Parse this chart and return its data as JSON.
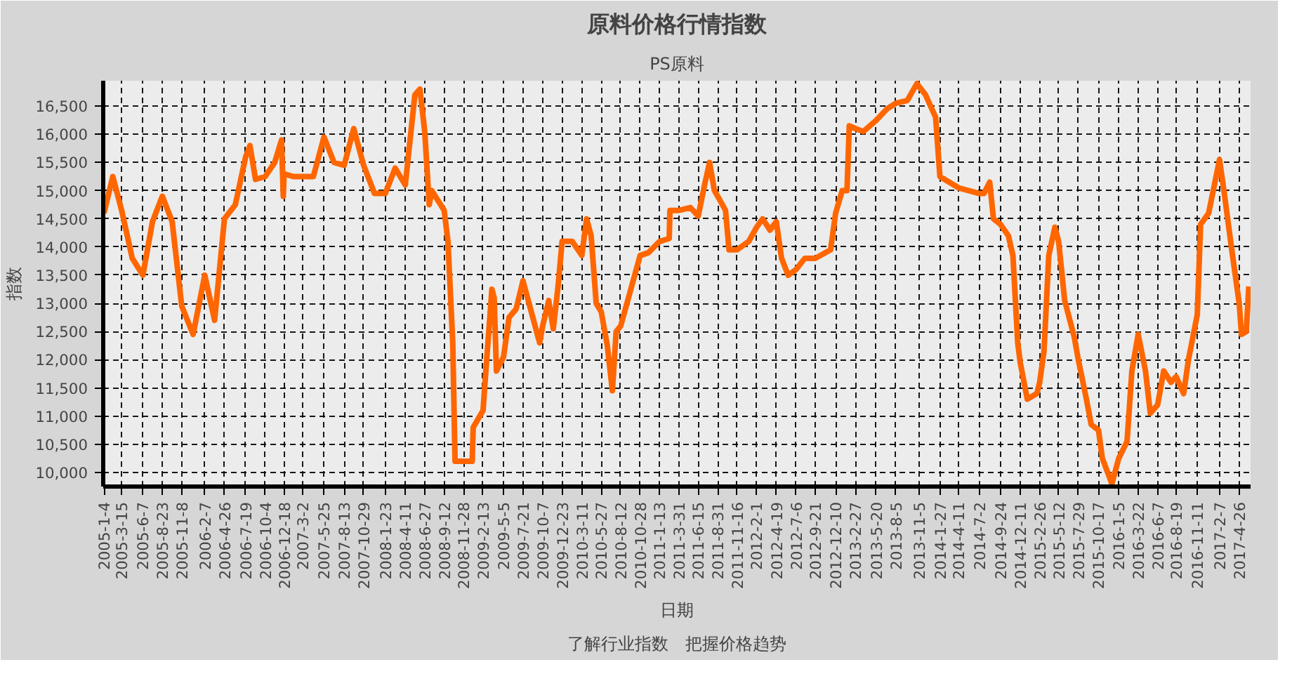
{
  "chart_data": {
    "type": "line",
    "title": "原料价格行情指数",
    "subtitle": "PS原料",
    "xlabel": "日期",
    "ylabel": "指数",
    "annotations": [
      "了解行业指数　把握价格趋势"
    ],
    "xlim": [
      "2005-01-01",
      "2017-06-10"
    ],
    "xticks": [
      {
        "value": "2005-01-04",
        "label": "2005-1-4"
      },
      {
        "value": "2005-03-15",
        "label": "2005-3-15"
      },
      {
        "value": "2005-06-07",
        "label": "2005-6-7"
      },
      {
        "value": "2005-08-23",
        "label": "2005-8-23"
      },
      {
        "value": "2005-11-08",
        "label": "2005-11-8"
      },
      {
        "value": "2006-02-07",
        "label": "2006-2-7"
      },
      {
        "value": "2006-04-26",
        "label": "2006-4-26"
      },
      {
        "value": "2006-07-19",
        "label": "2006-7-19"
      },
      {
        "value": "2006-10-04",
        "label": "2006-10-4"
      },
      {
        "value": "2006-12-18",
        "label": "2006-12-18"
      },
      {
        "value": "2007-03-02",
        "label": "2007-3-2"
      },
      {
        "value": "2007-05-25",
        "label": "2007-5-25"
      },
      {
        "value": "2007-08-13",
        "label": "2007-8-13"
      },
      {
        "value": "2007-10-29",
        "label": "2007-10-29"
      },
      {
        "value": "2008-01-23",
        "label": "2008-1-23"
      },
      {
        "value": "2008-04-11",
        "label": "2008-4-11"
      },
      {
        "value": "2008-06-27",
        "label": "2008-6-27"
      },
      {
        "value": "2008-09-12",
        "label": "2008-9-12"
      },
      {
        "value": "2008-11-28",
        "label": "2008-11-28"
      },
      {
        "value": "2009-02-13",
        "label": "2009-2-13"
      },
      {
        "value": "2009-05-05",
        "label": "2009-5-5"
      },
      {
        "value": "2009-07-21",
        "label": "2009-7-21"
      },
      {
        "value": "2009-10-07",
        "label": "2009-10-7"
      },
      {
        "value": "2009-12-23",
        "label": "2009-12-23"
      },
      {
        "value": "2010-03-11",
        "label": "2010-3-11"
      },
      {
        "value": "2010-05-27",
        "label": "2010-5-27"
      },
      {
        "value": "2010-08-12",
        "label": "2010-8-12"
      },
      {
        "value": "2010-10-28",
        "label": "2010-10-28"
      },
      {
        "value": "2011-01-13",
        "label": "2011-1-13"
      },
      {
        "value": "2011-03-31",
        "label": "2011-3-31"
      },
      {
        "value": "2011-06-15",
        "label": "2011-6-15"
      },
      {
        "value": "2011-08-31",
        "label": "2011-8-31"
      },
      {
        "value": "2011-11-16",
        "label": "2011-11-16"
      },
      {
        "value": "2012-02-01",
        "label": "2012-2-1"
      },
      {
        "value": "2012-04-19",
        "label": "2012-4-19"
      },
      {
        "value": "2012-07-06",
        "label": "2012-7-6"
      },
      {
        "value": "2012-09-21",
        "label": "2012-9-21"
      },
      {
        "value": "2012-12-10",
        "label": "2012-12-10"
      },
      {
        "value": "2013-02-27",
        "label": "2013-2-27"
      },
      {
        "value": "2013-05-20",
        "label": "2013-5-20"
      },
      {
        "value": "2013-08-05",
        "label": "2013-8-5"
      },
      {
        "value": "2013-11-05",
        "label": "2013-11-5"
      },
      {
        "value": "2014-01-27",
        "label": "2014-1-27"
      },
      {
        "value": "2014-04-11",
        "label": "2014-4-11"
      },
      {
        "value": "2014-07-02",
        "label": "2014-7-2"
      },
      {
        "value": "2014-09-24",
        "label": "2014-9-24"
      },
      {
        "value": "2014-12-11",
        "label": "2014-12-11"
      },
      {
        "value": "2015-02-26",
        "label": "2015-2-26"
      },
      {
        "value": "2015-05-12",
        "label": "2015-5-12"
      },
      {
        "value": "2015-07-29",
        "label": "2015-7-29"
      },
      {
        "value": "2015-10-17",
        "label": "2015-10-17"
      },
      {
        "value": "2016-01-05",
        "label": "2016-1-5"
      },
      {
        "value": "2016-03-22",
        "label": "2016-3-22"
      },
      {
        "value": "2016-06-07",
        "label": "2016-6-7"
      },
      {
        "value": "2016-08-19",
        "label": "2016-8-19"
      },
      {
        "value": "2016-11-11",
        "label": "2016-11-11"
      },
      {
        "value": "2017-02-07",
        "label": "2017-2-7"
      },
      {
        "value": "2017-04-26",
        "label": "2017-4-26"
      }
    ],
    "ylim": [
      9750,
      16950
    ],
    "yticks": [
      {
        "value": 10000,
        "label": "10,000"
      },
      {
        "value": 10500,
        "label": "10,500"
      },
      {
        "value": 11000,
        "label": "11,000"
      },
      {
        "value": 11500,
        "label": "11,500"
      },
      {
        "value": 12000,
        "label": "12,000"
      },
      {
        "value": 12500,
        "label": "12,500"
      },
      {
        "value": 13000,
        "label": "13,000"
      },
      {
        "value": 13500,
        "label": "13,500"
      },
      {
        "value": 14000,
        "label": "14,000"
      },
      {
        "value": 14500,
        "label": "14,500"
      },
      {
        "value": 15000,
        "label": "15,000"
      },
      {
        "value": 15500,
        "label": "15,500"
      },
      {
        "value": 16000,
        "label": "16,000"
      },
      {
        "value": 16500,
        "label": "16,500"
      }
    ],
    "grid": true,
    "line_style": "solid",
    "series": [
      {
        "color": "#ff6600",
        "x": [
          "2005-01-04",
          "2005-02-08",
          "2005-03-15",
          "2005-04-26",
          "2005-06-07",
          "2005-07-15",
          "2005-08-23",
          "2005-10-01",
          "2005-11-08",
          "2005-12-23",
          "2006-02-07",
          "2006-03-18",
          "2006-04-26",
          "2006-06-08",
          "2006-07-19",
          "2006-08-05",
          "2006-08-27",
          "2006-10-04",
          "2006-11-11",
          "2006-12-08",
          "2006-12-15",
          "2006-12-18",
          "2007-01-24",
          "2007-03-02",
          "2007-04-13",
          "2007-05-25",
          "2007-07-04",
          "2007-08-13",
          "2007-09-20",
          "2007-10-29",
          "2007-12-11",
          "2008-01-23",
          "2008-03-02",
          "2008-04-11",
          "2008-05-19",
          "2008-06-08",
          "2008-06-27",
          "2008-07-15",
          "2008-07-25",
          "2008-09-12",
          "2008-09-27",
          "2008-10-06",
          "2008-10-16",
          "2008-10-25",
          "2008-11-28",
          "2009-01-01",
          "2009-01-05",
          "2009-02-13",
          "2009-02-20",
          "2009-03-20",
          "2009-03-29",
          "2009-04-07",
          "2009-05-05",
          "2009-05-27",
          "2009-06-24",
          "2009-07-21",
          "2009-08-23",
          "2009-09-25",
          "2009-10-07",
          "2009-10-31",
          "2009-11-18",
          "2009-12-07",
          "2009-12-23",
          "2010-02-01",
          "2010-03-11",
          "2010-03-30",
          "2010-04-17",
          "2010-05-07",
          "2010-05-27",
          "2010-06-20",
          "2010-07-10",
          "2010-07-25",
          "2010-08-12",
          "2010-10-28",
          "2010-11-30",
          "2011-01-13",
          "2011-02-20",
          "2011-02-23",
          "2011-03-31",
          "2011-05-15",
          "2011-06-15",
          "2011-07-10",
          "2011-07-30",
          "2011-08-18",
          "2011-08-31",
          "2011-10-01",
          "2011-10-15",
          "2011-11-16",
          "2012-01-01",
          "2012-02-01",
          "2012-02-25",
          "2012-03-25",
          "2012-04-19",
          "2012-05-10",
          "2012-06-05",
          "2012-07-06",
          "2012-08-10",
          "2012-09-21",
          "2012-11-20",
          "2012-12-10",
          "2013-01-05",
          "2013-01-24",
          "2013-02-02",
          "2013-02-27",
          "2013-03-30",
          "2013-05-20",
          "2013-07-01",
          "2013-08-05",
          "2013-09-20",
          "2013-10-28",
          "2013-11-05",
          "2013-12-01",
          "2014-01-10",
          "2014-01-27",
          "2014-04-11",
          "2014-07-02",
          "2014-07-20",
          "2014-08-12",
          "2014-08-27",
          "2014-09-24",
          "2014-10-25",
          "2014-11-12",
          "2014-12-01",
          "2014-12-11",
          "2015-01-08",
          "2015-02-15",
          "2015-02-26",
          "2015-03-15",
          "2015-04-03",
          "2015-04-27",
          "2015-05-12",
          "2015-06-05",
          "2015-07-13",
          "2015-07-29",
          "2015-08-30",
          "2015-09-18",
          "2015-10-17",
          "2015-11-01",
          "2015-12-09",
          "2016-01-05",
          "2016-02-07",
          "2016-02-26",
          "2016-03-22",
          "2016-04-20",
          "2016-05-09",
          "2016-06-07",
          "2016-07-01",
          "2016-07-30",
          "2016-08-19",
          "2016-09-18",
          "2016-10-07",
          "2016-11-11",
          "2016-11-24",
          "2016-12-26",
          "2017-02-07",
          "2017-02-26",
          "2017-03-26",
          "2017-04-26",
          "2017-05-05",
          "2017-05-24",
          "2017-06-03"
        ],
        "values": [
          14600,
          15250,
          14650,
          13800,
          13500,
          14450,
          14900,
          14450,
          12950,
          12450,
          13500,
          12700,
          14500,
          14750,
          15600,
          15800,
          15200,
          15250,
          15500,
          15900,
          14900,
          15300,
          15250,
          15250,
          15250,
          15950,
          15500,
          15450,
          16100,
          15450,
          14950,
          14950,
          15400,
          15100,
          16700,
          16800,
          16050,
          14750,
          15000,
          14650,
          14100,
          13250,
          12300,
          10200,
          10200,
          10200,
          10800,
          11100,
          11550,
          13250,
          13100,
          11800,
          12050,
          12750,
          12900,
          13400,
          12850,
          12300,
          12600,
          13050,
          12550,
          13300,
          14100,
          14100,
          13850,
          14500,
          14200,
          13000,
          12850,
          12250,
          11450,
          12500,
          12600,
          13850,
          13900,
          14100,
          14150,
          14650,
          14650,
          14700,
          14550,
          15100,
          15500,
          15000,
          14900,
          14650,
          13950,
          13950,
          14100,
          14350,
          14500,
          14300,
          14450,
          13800,
          13500,
          13600,
          13800,
          13800,
          13950,
          14600,
          15000,
          15000,
          16150,
          16100,
          16050,
          16250,
          16450,
          16550,
          16600,
          16900,
          16850,
          16700,
          16300,
          15250,
          15050,
          14950,
          14950,
          15150,
          14500,
          14400,
          14200,
          13850,
          12300,
          11950,
          11300,
          11400,
          11600,
          12150,
          13850,
          14350,
          14100,
          13050,
          12400,
          12000,
          11300,
          10850,
          10750,
          10250,
          9800,
          10250,
          10550,
          11800,
          12450,
          11800,
          11050,
          11200,
          11800,
          11600,
          11700,
          11400,
          12000,
          12800,
          14400,
          14600,
          15550,
          14950,
          14000,
          13000,
          12450,
          12500,
          13300
        ]
      }
    ]
  }
}
